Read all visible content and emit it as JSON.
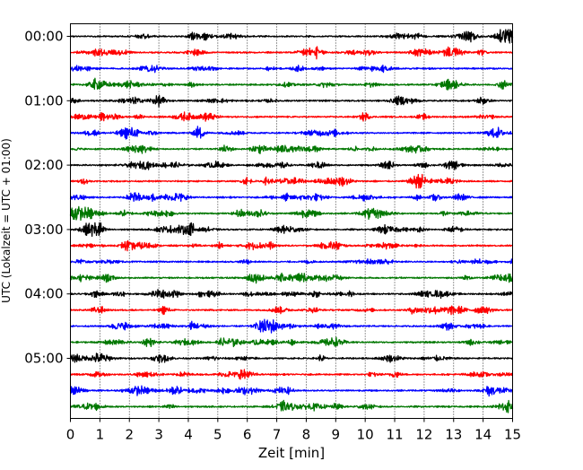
{
  "chart_data": {
    "type": "line",
    "title": "",
    "xlabel": "Zeit  [min]",
    "ylabel": "UTC (Lokalzeit = UTC + 01:00)",
    "xlim": [
      0,
      15
    ],
    "x_ticks": [
      0,
      1,
      2,
      3,
      4,
      5,
      6,
      7,
      8,
      9,
      10,
      11,
      12,
      13,
      14,
      15
    ],
    "x_tick_labels": [
      "0",
      "1",
      "2",
      "3",
      "4",
      "5",
      "6",
      "7",
      "8",
      "9",
      "10",
      "11",
      "12",
      "13",
      "14",
      "15"
    ],
    "y_tick_labels": [
      "00:00",
      "01:00",
      "02:00",
      "03:00",
      "04:00",
      "05:00"
    ],
    "y_tick_trace_index": [
      0,
      4,
      8,
      12,
      16,
      20
    ],
    "trace_interval": "15 min",
    "trace_count": 24,
    "trace_colors": [
      "#000000",
      "#ff0000",
      "#0000ff",
      "#007700"
    ],
    "grid": "vertical dotted lines at every minute",
    "legend": "none",
    "trace_start_times": [
      "00:00",
      "00:15",
      "00:30",
      "00:45",
      "01:00",
      "01:15",
      "01:30",
      "01:45",
      "02:00",
      "02:15",
      "02:30",
      "02:45",
      "03:00",
      "03:15",
      "03:30",
      "03:45",
      "04:00",
      "04:15",
      "04:30",
      "04:45",
      "05:00",
      "05:15",
      "05:30",
      "05:45"
    ]
  }
}
